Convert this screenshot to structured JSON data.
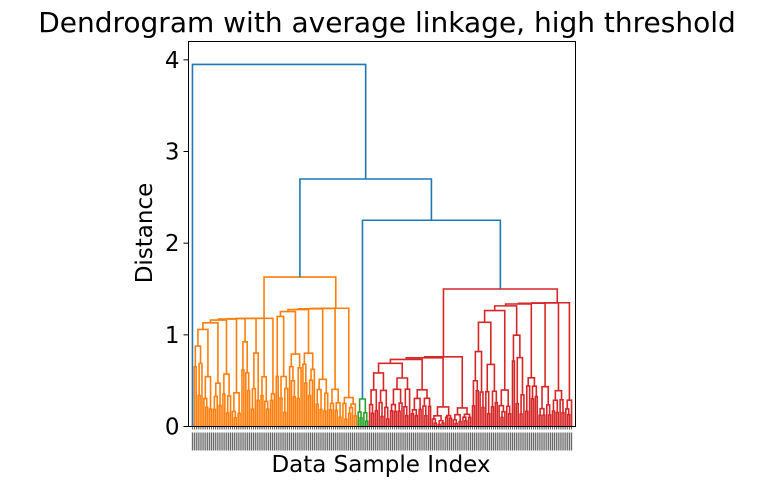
{
  "chart_data": {
    "type": "dendrogram",
    "title": "Dendrogram with average linkage, high threshold",
    "xlabel": "Data Sample Index",
    "ylabel": "Distance",
    "ylim": [
      0,
      4.2
    ],
    "yticks": [
      0,
      1,
      2,
      3,
      4
    ],
    "ytick_labels": [
      "0",
      "1",
      "2",
      "3",
      "4"
    ],
    "colors": {
      "above_threshold": "#1f77b4",
      "cluster_1": "#ff7f0e",
      "cluster_2": "#2ca02c",
      "cluster_3": "#d62728"
    },
    "n_leaves": 200,
    "top_merges": [
      {
        "name": "root",
        "height": 3.95,
        "color": "above_threshold"
      },
      {
        "name": "node-a",
        "height": 2.7,
        "color": "above_threshold"
      },
      {
        "name": "node-b",
        "height": 2.25,
        "color": "above_threshold"
      }
    ],
    "clusters": [
      {
        "name": "cluster_1",
        "color": "cluster_1",
        "leaf_share": 0.43,
        "root_height": 1.63,
        "subclusters": [
          {
            "height": 1.18,
            "heights": [
              0.92,
              0.62,
              0.55,
              0.72,
              0.45,
              0.98,
              0.84,
              0.55,
              0.4
            ]
          },
          {
            "height": 1.29,
            "heights": [
              1.23,
              0.92,
              0.85,
              0.6,
              0.45,
              0.37
            ]
          }
        ]
      },
      {
        "name": "cluster_2",
        "color": "cluster_2",
        "leaf_share": 0.03,
        "root_height": 0.8,
        "subclusters": [
          {
            "height": 0.3,
            "heights": [
              0.2,
              0.15
            ]
          }
        ]
      },
      {
        "name": "cluster_3",
        "color": "cluster_3",
        "leaf_share": 0.54,
        "root_height": 1.5,
        "subclusters": [
          {
            "height": 0.76,
            "heights": [
              0.7,
              0.55,
              0.45,
              0.3,
              0.25
            ]
          },
          {
            "height": 1.35,
            "heights": [
              0.98,
              0.75,
              0.55,
              1.03,
              0.58,
              0.45,
              0.42,
              0.35
            ]
          }
        ]
      }
    ]
  }
}
